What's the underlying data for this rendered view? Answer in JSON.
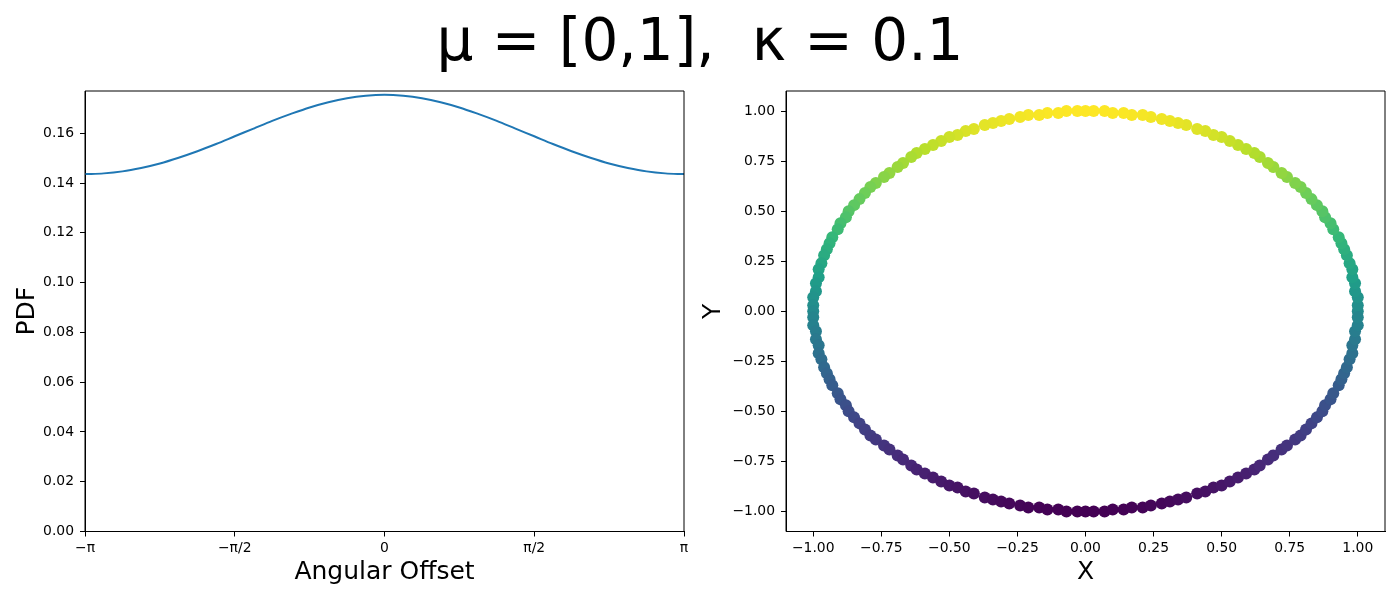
{
  "chart_data": [
    {
      "type": "line",
      "title": "μ = [0,1],  κ = 0.1",
      "xlabel": "Angular Offset",
      "ylabel": "PDF",
      "color": "#1f77b4",
      "x": [
        -3.142,
        -2.945,
        -2.749,
        -2.553,
        -2.356,
        -2.16,
        -1.963,
        -1.767,
        -1.571,
        -1.374,
        -1.178,
        -0.982,
        -0.785,
        -0.589,
        -0.393,
        -0.196,
        0,
        0.196,
        0.393,
        0.589,
        0.785,
        0.982,
        1.178,
        1.374,
        1.571,
        1.767,
        1.963,
        2.16,
        2.356,
        2.553,
        2.749,
        2.945,
        3.142
      ],
      "values": [
        0.1436,
        0.1439,
        0.1447,
        0.1461,
        0.1479,
        0.1502,
        0.1528,
        0.1557,
        0.1588,
        0.1619,
        0.165,
        0.1678,
        0.1704,
        0.1725,
        0.1741,
        0.1751,
        0.1755,
        0.1751,
        0.1741,
        0.1725,
        0.1704,
        0.1678,
        0.165,
        0.1619,
        0.1588,
        0.1557,
        0.1528,
        0.1502,
        0.1479,
        0.1461,
        0.1447,
        0.1439,
        0.1436
      ],
      "xlim": [
        -3.142,
        3.142
      ],
      "xticks": [
        {
          "value": -3.142,
          "label": "−π"
        },
        {
          "value": -1.571,
          "label": "−π/2"
        },
        0,
        {
          "value": 1.571,
          "label": "π/2"
        },
        {
          "value": 3.142,
          "label": "π"
        }
      ],
      "ylim": [
        0,
        0.177
      ],
      "yticks": [
        {
          "value": 0,
          "label": "0.00"
        },
        {
          "value": 0.02,
          "label": "0.02"
        },
        {
          "value": 0.04,
          "label": "0.04"
        },
        {
          "value": 0.06,
          "label": "0.06"
        },
        {
          "value": 0.08,
          "label": "0.08"
        },
        {
          "value": 0.1,
          "label": "0.10"
        },
        {
          "value": 0.12,
          "label": "0.12"
        },
        {
          "value": 0.14,
          "label": "0.14"
        },
        {
          "value": 0.16,
          "label": "0.16"
        }
      ]
    },
    {
      "type": "scatter",
      "xlabel": "X",
      "ylabel": "Y",
      "marker": "circle",
      "x": [
        1,
        1,
        1,
        0.99,
        0.99,
        0.98,
        0.98,
        0.97,
        0.96,
        0.95,
        0.94,
        0.93,
        0.91,
        0.9,
        0.88,
        0.87,
        0.85,
        0.83,
        0.81,
        0.79,
        0.77,
        0.74,
        0.72,
        0.69,
        0.67,
        0.64,
        0.62,
        0.59,
        0.56,
        0.53,
        0.5,
        0.47,
        0.44,
        0.41,
        0.37,
        0.34,
        0.31,
        0.28,
        0.24,
        0.21,
        0.17,
        0.14,
        0.1,
        0.07,
        0.03,
        0,
        -0.03,
        -0.07,
        -0.1,
        -0.14,
        -0.17,
        -0.21,
        -0.24,
        -0.28,
        -0.31,
        -0.34,
        -0.37,
        -0.41,
        -0.44,
        -0.47,
        -0.5,
        -0.53,
        -0.56,
        -0.59,
        -0.62,
        -0.64,
        -0.67,
        -0.69,
        -0.72,
        -0.74,
        -0.77,
        -0.79,
        -0.81,
        -0.83,
        -0.85,
        -0.87,
        -0.88,
        -0.9,
        -0.91,
        -0.93,
        -0.94,
        -0.95,
        -0.96,
        -0.97,
        -0.98,
        -0.98,
        -0.99,
        -0.99,
        -1,
        -1,
        -1,
        -1,
        -1,
        -0.99,
        -0.99,
        -0.98,
        -0.98,
        -0.97,
        -0.96,
        -0.95,
        -0.94,
        -0.93,
        -0.91,
        -0.9,
        -0.88,
        -0.87,
        -0.85,
        -0.83,
        -0.81,
        -0.79,
        -0.77,
        -0.74,
        -0.72,
        -0.69,
        -0.67,
        -0.64,
        -0.62,
        -0.59,
        -0.56,
        -0.53,
        -0.5,
        -0.47,
        -0.44,
        -0.41,
        -0.37,
        -0.34,
        -0.31,
        -0.28,
        -0.24,
        -0.21,
        -0.17,
        -0.14,
        -0.1,
        -0.07,
        -0.03,
        0,
        0.03,
        0.07,
        0.1,
        0.14,
        0.17,
        0.21,
        0.24,
        0.28,
        0.31,
        0.34,
        0.37,
        0.41,
        0.44,
        0.47,
        0.5,
        0.53,
        0.56,
        0.59,
        0.62,
        0.64,
        0.67,
        0.69,
        0.72,
        0.74,
        0.77,
        0.79,
        0.81,
        0.83,
        0.85,
        0.87,
        0.88,
        0.9,
        0.91,
        0.93,
        0.94,
        0.95,
        0.96,
        0.97,
        0.98,
        0.98,
        0.99,
        0.99,
        1,
        1
      ],
      "values": [
        0,
        0.03,
        0.07,
        0.1,
        0.14,
        0.17,
        0.21,
        0.24,
        0.28,
        0.31,
        0.34,
        0.37,
        0.41,
        0.44,
        0.47,
        0.5,
        0.53,
        0.56,
        0.59,
        0.62,
        0.64,
        0.67,
        0.69,
        0.72,
        0.74,
        0.77,
        0.79,
        0.81,
        0.83,
        0.85,
        0.87,
        0.88,
        0.9,
        0.91,
        0.93,
        0.94,
        0.95,
        0.96,
        0.97,
        0.98,
        0.98,
        0.99,
        0.99,
        1,
        1,
        1,
        1,
        1,
        0.99,
        0.99,
        0.98,
        0.98,
        0.97,
        0.96,
        0.95,
        0.94,
        0.93,
        0.91,
        0.9,
        0.88,
        0.87,
        0.85,
        0.83,
        0.81,
        0.79,
        0.77,
        0.74,
        0.72,
        0.69,
        0.67,
        0.64,
        0.62,
        0.59,
        0.56,
        0.53,
        0.5,
        0.47,
        0.44,
        0.41,
        0.37,
        0.34,
        0.31,
        0.28,
        0.24,
        0.21,
        0.17,
        0.14,
        0.1,
        0.07,
        0.03,
        0,
        -0.03,
        -0.07,
        -0.1,
        -0.14,
        -0.17,
        -0.21,
        -0.24,
        -0.28,
        -0.31,
        -0.34,
        -0.37,
        -0.41,
        -0.44,
        -0.47,
        -0.5,
        -0.53,
        -0.56,
        -0.59,
        -0.62,
        -0.64,
        -0.67,
        -0.69,
        -0.72,
        -0.74,
        -0.77,
        -0.79,
        -0.81,
        -0.83,
        -0.85,
        -0.87,
        -0.88,
        -0.9,
        -0.91,
        -0.93,
        -0.94,
        -0.95,
        -0.96,
        -0.97,
        -0.98,
        -0.98,
        -0.99,
        -0.99,
        -1,
        -1,
        -1,
        -1,
        -1,
        -0.99,
        -0.99,
        -0.98,
        -0.98,
        -0.97,
        -0.96,
        -0.95,
        -0.94,
        -0.93,
        -0.91,
        -0.9,
        -0.88,
        -0.87,
        -0.85,
        -0.83,
        -0.81,
        -0.79,
        -0.77,
        -0.74,
        -0.72,
        -0.69,
        -0.67,
        -0.64,
        -0.62,
        -0.59,
        -0.56,
        -0.53,
        -0.5,
        -0.47,
        -0.44,
        -0.41,
        -0.37,
        -0.34,
        -0.31,
        -0.28,
        -0.24,
        -0.21,
        -0.17,
        -0.14,
        -0.1,
        -0.07,
        -0.03
      ],
      "colors": [
        "#248a8d",
        "#238e8c",
        "#22938b",
        "#21978a",
        "#209b89",
        "#20a088",
        "#24a385",
        "#27a783",
        "#2bab81",
        "#2eaf7e",
        "#31b37c",
        "#35b779",
        "#3dba74",
        "#45be6f",
        "#4ec16b",
        "#56c466",
        "#5ec861",
        "#66cb5d",
        "#6ece58",
        "#77d052",
        "#80d24c",
        "#89d447",
        "#92d641",
        "#9ad83c",
        "#a3da37",
        "#aadc32",
        "#b2dd2d",
        "#b9df2b",
        "#c0df2a",
        "#c7e029",
        "#cde129",
        "#d3e228",
        "#d9e228",
        "#dee328",
        "#e3e427",
        "#e7e427",
        "#ece526",
        "#efe526",
        "#f2e626",
        "#f5e626",
        "#f8e625",
        "#fae725",
        "#fbe725",
        "#fce725",
        "#fde725",
        "#fde725",
        "#fde725",
        "#fce725",
        "#fbe725",
        "#fae725",
        "#f8e625",
        "#f5e626",
        "#f2e626",
        "#efe526",
        "#ece526",
        "#e7e427",
        "#e3e427",
        "#dee328",
        "#d9e228",
        "#d3e228",
        "#cde129",
        "#c7e029",
        "#c0df2a",
        "#b9df2b",
        "#b2dd2d",
        "#aadc32",
        "#a3da37",
        "#9ad83c",
        "#92d641",
        "#89d447",
        "#80d24c",
        "#77d052",
        "#6ece58",
        "#66cb5d",
        "#5ec861",
        "#56c466",
        "#4ec16b",
        "#45be6f",
        "#3dba74",
        "#35b779",
        "#31b37c",
        "#2eaf7e",
        "#2bab81",
        "#27a783",
        "#24a385",
        "#20a088",
        "#209b89",
        "#21978a",
        "#22938b",
        "#238e8c",
        "#248a8d",
        "#25858d",
        "#26818e",
        "#287d8e",
        "#2a798e",
        "#2b758e",
        "#2d718e",
        "#2f6d8e",
        "#30698e",
        "#32658e",
        "#34618d",
        "#365c8c",
        "#38588b",
        "#39548b",
        "#3b508a",
        "#3d4c89",
        "#3e4888",
        "#404386",
        "#413f84",
        "#423c82",
        "#433880",
        "#44347e",
        "#45317c",
        "#462d7b",
        "#472a79",
        "#482777",
        "#472373",
        "#472070",
        "#471c6d",
        "#46196a",
        "#461668",
        "#461465",
        "#461163",
        "#450f61",
        "#450d5f",
        "#450b5d",
        "#45095b",
        "#45075a",
        "#440658",
        "#440457",
        "#440356",
        "#440255",
        "#440255",
        "#440154",
        "#440154",
        "#440154",
        "#440154",
        "#440154",
        "#440255",
        "#440255",
        "#440356",
        "#440457",
        "#440658",
        "#45075a",
        "#45095b",
        "#450b5d",
        "#450d5f",
        "#450f61",
        "#461163",
        "#461465",
        "#461668",
        "#46196a",
        "#471c6d",
        "#472070",
        "#472373",
        "#482777",
        "#472a79",
        "#462d7b",
        "#45317c",
        "#44347e",
        "#433880",
        "#423c82",
        "#413f84",
        "#404386",
        "#3e4888",
        "#3d4c89",
        "#3b508a",
        "#39548b",
        "#38588b",
        "#365c8c",
        "#34618d",
        "#32658e",
        "#30698e",
        "#2f6d8e",
        "#2d718e",
        "#2b758e",
        "#2a798e",
        "#287d8e",
        "#26818e",
        "#25858d"
      ],
      "xlim": [
        -1.1,
        1.1
      ],
      "xticks": [
        {
          "value": -1,
          "label": "−1.00"
        },
        {
          "value": -0.75,
          "label": "−0.75"
        },
        {
          "value": -0.5,
          "label": "−0.50"
        },
        {
          "value": -0.25,
          "label": "−0.25"
        },
        {
          "value": 0,
          "label": "0.00"
        },
        {
          "value": 0.25,
          "label": "0.25"
        },
        {
          "value": 0.5,
          "label": "0.50"
        },
        {
          "value": 0.75,
          "label": "0.75"
        },
        {
          "value": 1,
          "label": "1.00"
        }
      ],
      "ylim": [
        -1.1,
        1.1
      ],
      "yticks": [
        {
          "value": -1,
          "label": "−1.00"
        },
        {
          "value": -0.75,
          "label": "−0.75"
        },
        {
          "value": -0.5,
          "label": "−0.50"
        },
        {
          "value": -0.25,
          "label": "−0.25"
        },
        {
          "value": 0,
          "label": "0.00"
        },
        {
          "value": 0.25,
          "label": "0.25"
        },
        {
          "value": 0.5,
          "label": "0.50"
        },
        {
          "value": 0.75,
          "label": "0.75"
        },
        {
          "value": 1,
          "label": "1.00"
        }
      ]
    }
  ]
}
